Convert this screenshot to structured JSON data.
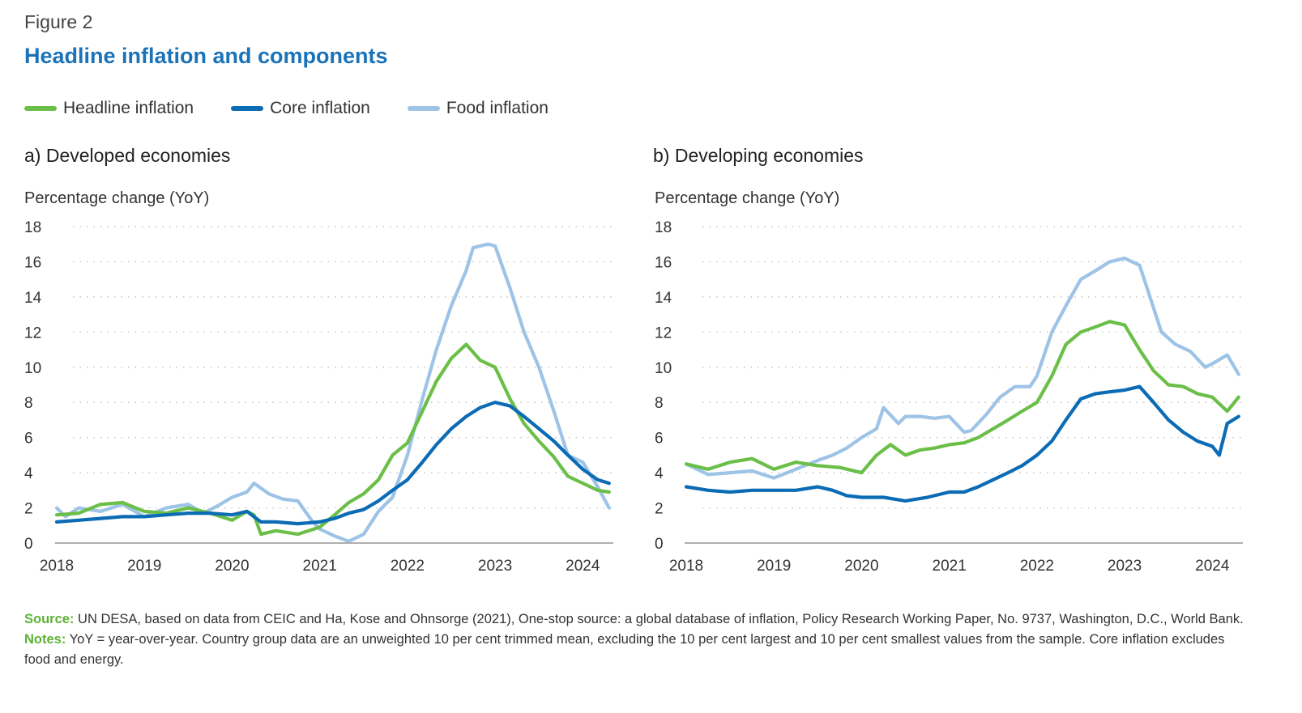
{
  "figure": {
    "label": "Figure 2",
    "title": "Headline inflation and components"
  },
  "legend": [
    {
      "label": "Headline inflation",
      "color": "#6bbf48"
    },
    {
      "label": "Core inflation",
      "color": "#0b6bb5"
    },
    {
      "label": "Food inflation",
      "color": "#9dc3e6"
    }
  ],
  "footnotes": {
    "source_label": "Source:",
    "source_text": "UN DESA, based on data from CEIC and Ha, Kose and Ohnsorge (2021), One-stop source: a global database of inflation, Policy Research Working Paper, No. 9737, Washington, D.C., World Bank.",
    "notes_label": "Notes:",
    "notes_text": "YoY = year-over-year. Country group data are an unweighted 10 per cent trimmed mean, excluding the 10 per cent largest and 10 per cent smallest values from the sample. Core inflation excludes food and energy."
  },
  "chart_data": [
    {
      "type": "line",
      "title": "a)  Developed economies",
      "ylabel": "Percentage change (YoY)",
      "xlabel": "",
      "ylim": [
        0,
        18
      ],
      "xlim": [
        2018,
        2024.33
      ],
      "yticks": [
        "0",
        "2",
        "4",
        "6",
        "8",
        "10",
        "12",
        "14",
        "16",
        "18"
      ],
      "xticks": [
        "2018",
        "2019",
        "2020",
        "2021",
        "2022",
        "2023",
        "2024"
      ],
      "grid": "horizontal dotted",
      "series": [
        {
          "name": "Headline inflation",
          "color": "#6bbf48",
          "x": [
            2018,
            2018.25,
            2018.5,
            2018.75,
            2019,
            2019.25,
            2019.5,
            2019.75,
            2020,
            2020.17,
            2020.25,
            2020.33,
            2020.5,
            2020.75,
            2021,
            2021.17,
            2021.33,
            2021.5,
            2021.67,
            2021.83,
            2022,
            2022.17,
            2022.33,
            2022.5,
            2022.67,
            2022.83,
            2023,
            2023.17,
            2023.33,
            2023.5,
            2023.67,
            2023.83,
            2024,
            2024.17,
            2024.3
          ],
          "y": [
            1.6,
            1.7,
            2.2,
            2.3,
            1.8,
            1.7,
            2.0,
            1.7,
            1.3,
            1.8,
            1.6,
            0.5,
            0.7,
            0.5,
            0.9,
            1.6,
            2.3,
            2.8,
            3.6,
            5.0,
            5.7,
            7.5,
            9.2,
            10.5,
            11.3,
            10.4,
            10.0,
            8.2,
            6.8,
            5.8,
            4.9,
            3.8,
            3.4,
            3.0,
            2.9
          ]
        },
        {
          "name": "Core inflation",
          "color": "#0b6bb5",
          "x": [
            2018,
            2018.25,
            2018.5,
            2018.75,
            2019,
            2019.25,
            2019.5,
            2019.75,
            2020,
            2020.17,
            2020.33,
            2020.5,
            2020.75,
            2021,
            2021.17,
            2021.33,
            2021.5,
            2021.67,
            2021.83,
            2022,
            2022.17,
            2022.33,
            2022.5,
            2022.67,
            2022.83,
            2023,
            2023.17,
            2023.33,
            2023.5,
            2023.67,
            2023.83,
            2024,
            2024.17,
            2024.3
          ],
          "y": [
            1.2,
            1.3,
            1.4,
            1.5,
            1.5,
            1.6,
            1.7,
            1.7,
            1.6,
            1.8,
            1.2,
            1.2,
            1.1,
            1.2,
            1.4,
            1.7,
            1.9,
            2.4,
            3.0,
            3.6,
            4.6,
            5.6,
            6.5,
            7.2,
            7.7,
            8.0,
            7.8,
            7.2,
            6.5,
            5.8,
            5.0,
            4.2,
            3.6,
            3.4
          ]
        },
        {
          "name": "Food inflation",
          "color": "#9dc3e6",
          "x": [
            2018,
            2018.1,
            2018.25,
            2018.5,
            2018.75,
            2019,
            2019.25,
            2019.5,
            2019.67,
            2019.83,
            2020,
            2020.17,
            2020.25,
            2020.42,
            2020.58,
            2020.75,
            2020.92,
            2021,
            2021.17,
            2021.33,
            2021.5,
            2021.67,
            2021.83,
            2022,
            2022.17,
            2022.33,
            2022.5,
            2022.67,
            2022.75,
            2022.92,
            2023,
            2023.17,
            2023.33,
            2023.5,
            2023.67,
            2023.83,
            2024,
            2024.17,
            2024.3
          ],
          "y": [
            2.0,
            1.5,
            2.0,
            1.8,
            2.2,
            1.5,
            2.0,
            2.2,
            1.7,
            2.1,
            2.6,
            2.9,
            3.4,
            2.8,
            2.5,
            2.4,
            1.2,
            0.8,
            0.4,
            0.1,
            0.5,
            1.8,
            2.6,
            5.0,
            8.2,
            11.0,
            13.5,
            15.5,
            16.8,
            17.0,
            16.9,
            14.5,
            12.0,
            10.0,
            7.5,
            5.0,
            4.6,
            3.2,
            2.0
          ]
        }
      ]
    },
    {
      "type": "line",
      "title": "b)  Developing economies",
      "ylabel": "Percentage change (YoY)",
      "xlabel": "",
      "ylim": [
        0,
        18
      ],
      "xlim": [
        2018,
        2024.33
      ],
      "yticks": [
        "0",
        "2",
        "4",
        "6",
        "8",
        "10",
        "12",
        "14",
        "16",
        "18"
      ],
      "xticks": [
        "2018",
        "2019",
        "2020",
        "2021",
        "2022",
        "2023",
        "2024"
      ],
      "grid": "horizontal dotted",
      "series": [
        {
          "name": "Headline inflation",
          "color": "#6bbf48",
          "x": [
            2018,
            2018.25,
            2018.5,
            2018.75,
            2019,
            2019.25,
            2019.5,
            2019.75,
            2020,
            2020.17,
            2020.33,
            2020.5,
            2020.67,
            2020.83,
            2021,
            2021.17,
            2021.33,
            2021.5,
            2021.67,
            2021.83,
            2022,
            2022.17,
            2022.33,
            2022.5,
            2022.67,
            2022.83,
            2023,
            2023.17,
            2023.33,
            2023.5,
            2023.67,
            2023.83,
            2024,
            2024.17,
            2024.3
          ],
          "y": [
            4.5,
            4.2,
            4.6,
            4.8,
            4.2,
            4.6,
            4.4,
            4.3,
            4.0,
            5.0,
            5.6,
            5.0,
            5.3,
            5.4,
            5.6,
            5.7,
            6.0,
            6.5,
            7.0,
            7.5,
            8.0,
            9.5,
            11.3,
            12.0,
            12.3,
            12.6,
            12.4,
            11.0,
            9.8,
            9.0,
            8.9,
            8.5,
            8.3,
            7.5,
            8.3
          ]
        },
        {
          "name": "Core inflation",
          "color": "#0b6bb5",
          "x": [
            2018,
            2018.25,
            2018.5,
            2018.75,
            2019,
            2019.25,
            2019.5,
            2019.67,
            2019.83,
            2020,
            2020.25,
            2020.5,
            2020.75,
            2021,
            2021.17,
            2021.33,
            2021.5,
            2021.67,
            2021.83,
            2022,
            2022.17,
            2022.33,
            2022.5,
            2022.67,
            2022.83,
            2023,
            2023.17,
            2023.33,
            2023.5,
            2023.67,
            2023.83,
            2024,
            2024.08,
            2024.17,
            2024.3
          ],
          "y": [
            3.2,
            3.0,
            2.9,
            3.0,
            3.0,
            3.0,
            3.2,
            3.0,
            2.7,
            2.6,
            2.6,
            2.4,
            2.6,
            2.9,
            2.9,
            3.2,
            3.6,
            4.0,
            4.4,
            5.0,
            5.8,
            7.0,
            8.2,
            8.5,
            8.6,
            8.7,
            8.9,
            8.0,
            7.0,
            6.3,
            5.8,
            5.5,
            5.0,
            6.8,
            7.2
          ]
        },
        {
          "name": "Food inflation",
          "color": "#9dc3e6",
          "x": [
            2018,
            2018.25,
            2018.5,
            2018.75,
            2019,
            2019.25,
            2019.5,
            2019.67,
            2019.83,
            2020,
            2020.17,
            2020.25,
            2020.42,
            2020.5,
            2020.67,
            2020.83,
            2021,
            2021.17,
            2021.25,
            2021.42,
            2021.58,
            2021.75,
            2021.92,
            2022,
            2022.17,
            2022.33,
            2022.5,
            2022.67,
            2022.83,
            2023,
            2023.17,
            2023.25,
            2023.42,
            2023.58,
            2023.75,
            2023.92,
            2024,
            2024.17,
            2024.3
          ],
          "y": [
            4.5,
            3.9,
            4.0,
            4.1,
            3.7,
            4.2,
            4.7,
            5.0,
            5.4,
            6.0,
            6.5,
            7.7,
            6.8,
            7.2,
            7.2,
            7.1,
            7.2,
            6.3,
            6.4,
            7.3,
            8.3,
            8.9,
            8.9,
            9.5,
            12.0,
            13.5,
            15.0,
            15.5,
            16.0,
            16.2,
            15.8,
            14.6,
            12.0,
            11.3,
            10.9,
            10.0,
            10.2,
            10.7,
            9.6
          ]
        }
      ]
    }
  ]
}
